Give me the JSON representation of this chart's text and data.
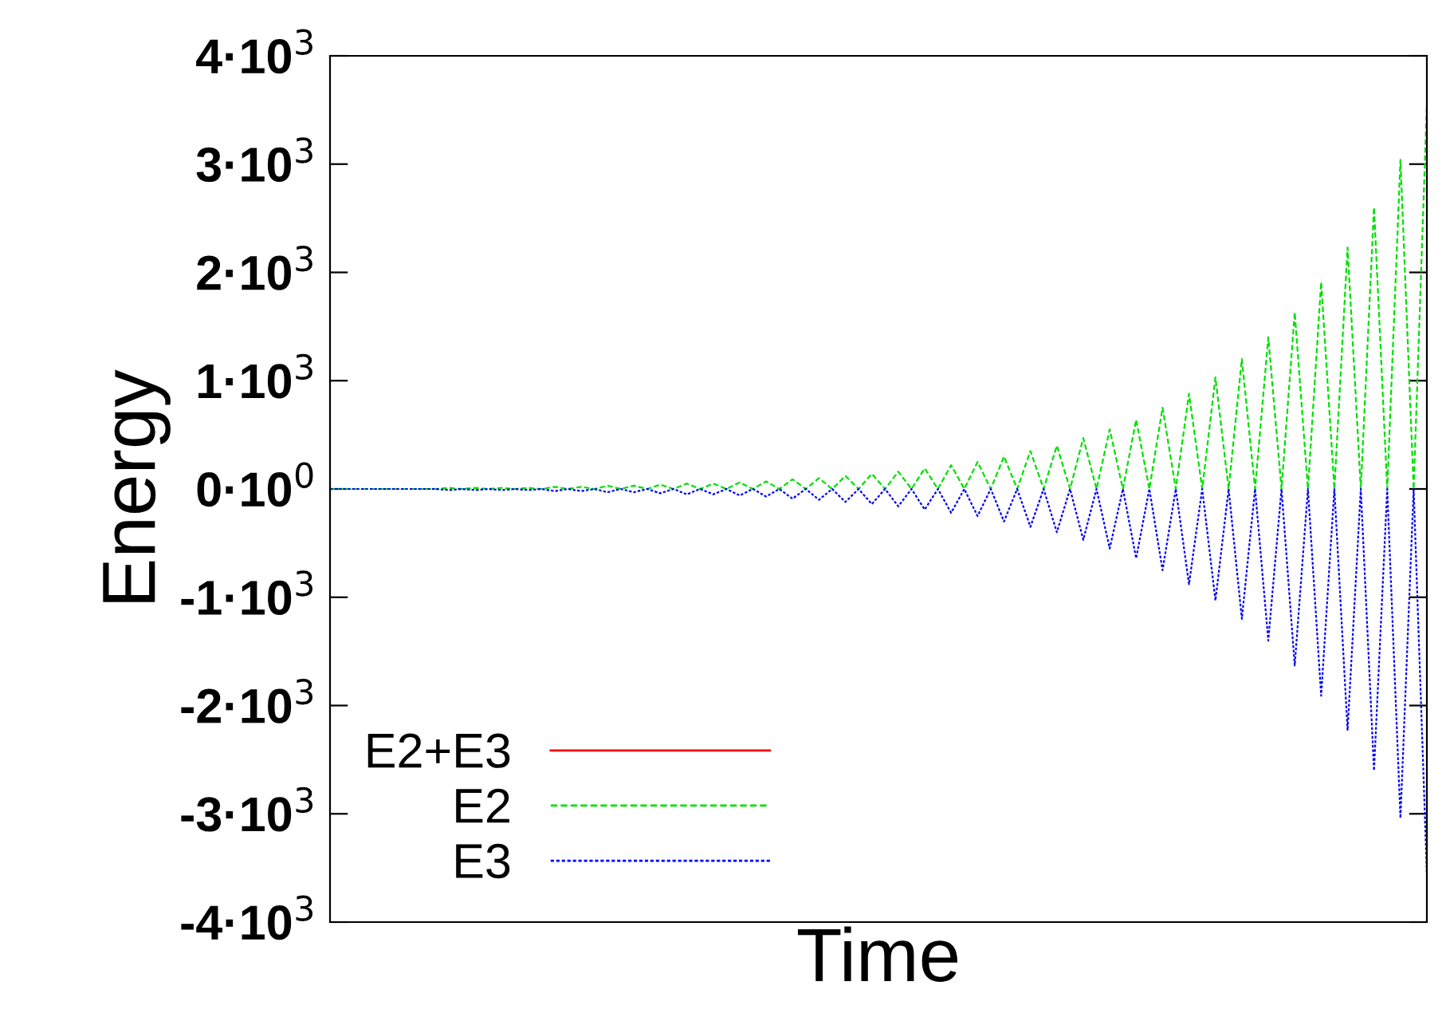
{
  "chart_data": {
    "type": "line",
    "xlabel": "Time",
    "ylabel": "Energy",
    "categories": [
      null,
      null,
      null,
      null,
      null,
      null,
      null,
      null,
      null,
      null,
      null,
      null,
      null,
      null,
      null,
      null,
      null,
      null,
      null,
      null,
      null,
      null,
      null,
      null,
      null,
      null,
      null,
      null,
      null,
      null,
      null,
      null,
      null,
      null,
      null,
      null,
      null,
      null,
      null,
      null,
      null,
      null,
      null,
      null,
      null,
      null,
      null,
      null,
      null,
      null,
      null,
      null,
      null,
      null,
      null,
      null,
      null,
      null,
      null,
      null,
      null,
      null,
      null,
      null,
      null,
      null,
      null,
      null,
      null,
      null,
      null,
      null,
      null,
      null,
      null,
      null,
      null,
      null,
      null,
      null,
      null,
      null,
      null,
      null
    ],
    "series": [
      {
        "name": "E2+E3",
        "color": "#ff0000",
        "line_style": "solid",
        "values": [
          null,
          null,
          null,
          null,
          null,
          null,
          null,
          null,
          null,
          null,
          null,
          null,
          null,
          null,
          null,
          null,
          null,
          null,
          null,
          null,
          null,
          null,
          null,
          null,
          null,
          null,
          null,
          null,
          null,
          null,
          null,
          null,
          null,
          null,
          null,
          null,
          null,
          null,
          null,
          null,
          null,
          null,
          null,
          null,
          null,
          null,
          null,
          null,
          null,
          null,
          null,
          null,
          null,
          null,
          null,
          null,
          null,
          null,
          null,
          null,
          null,
          null,
          null,
          null,
          null,
          null,
          null,
          null,
          null,
          null,
          null,
          null,
          null,
          null,
          null,
          null,
          null,
          null,
          null,
          null,
          null,
          null,
          null,
          null
        ]
      },
      {
        "name": "E2",
        "color": "#00e000",
        "line_style": "dashed",
        "values": [
          0,
          0,
          0,
          0,
          0,
          0,
          0,
          0,
          0,
          10,
          0,
          10,
          0,
          10,
          0,
          10,
          0,
          20,
          0,
          20,
          0,
          30,
          0,
          30,
          0,
          40,
          0,
          50,
          0,
          50,
          0,
          60,
          0,
          70,
          0,
          90,
          0,
          100,
          0,
          120,
          0,
          140,
          0,
          160,
          0,
          190,
          0,
          220,
          0,
          250,
          0,
          300,
          0,
          350,
          0,
          400,
          0,
          470,
          0,
          550,
          0,
          640,
          0,
          750,
          0,
          880,
          0,
          1030,
          0,
          1200,
          0,
          1400,
          0,
          1630,
          0,
          1910,
          0,
          2230,
          0,
          2600,
          0,
          3040,
          0,
          3550
        ]
      },
      {
        "name": "E3",
        "color": "#0000ff",
        "line_style": "dotted",
        "values": [
          0,
          0,
          0,
          0,
          0,
          0,
          0,
          0,
          0,
          -10,
          0,
          -10,
          0,
          -10,
          0,
          -10,
          0,
          -20,
          0,
          -20,
          0,
          -30,
          0,
          -30,
          0,
          -40,
          0,
          -50,
          0,
          -50,
          0,
          -60,
          0,
          -70,
          0,
          -90,
          0,
          -100,
          0,
          -120,
          0,
          -140,
          0,
          -160,
          0,
          -190,
          0,
          -220,
          0,
          -250,
          0,
          -300,
          0,
          -350,
          0,
          -400,
          0,
          -470,
          0,
          -550,
          0,
          -640,
          0,
          -750,
          0,
          -880,
          0,
          -1030,
          0,
          -1200,
          0,
          -1400,
          0,
          -1630,
          0,
          -1910,
          0,
          -2230,
          0,
          -2600,
          0,
          -3040,
          0,
          -3550
        ]
      }
    ],
    "ylim": [
      -4000,
      4000
    ],
    "yticks": [
      {
        "value": -4000,
        "label": "-4·10$^{3}$"
      },
      {
        "value": -3000,
        "label": "-3·10$^{3}$"
      },
      {
        "value": -2000,
        "label": "-2·10$^{3}$"
      },
      {
        "value": -1000,
        "label": "-1·10$^{3}$"
      },
      {
        "value": 0,
        "label": "0·10$^{0}$"
      },
      {
        "value": 1000,
        "label": "1·10$^{3}$"
      },
      {
        "value": 2000,
        "label": "2·10$^{3}$"
      },
      {
        "value": 3000,
        "label": "3·10$^{3}$"
      },
      {
        "value": 4000,
        "label": "4·10$^{3}$"
      }
    ],
    "grid": false,
    "legend": "bottom left",
    "marker": "none"
  }
}
